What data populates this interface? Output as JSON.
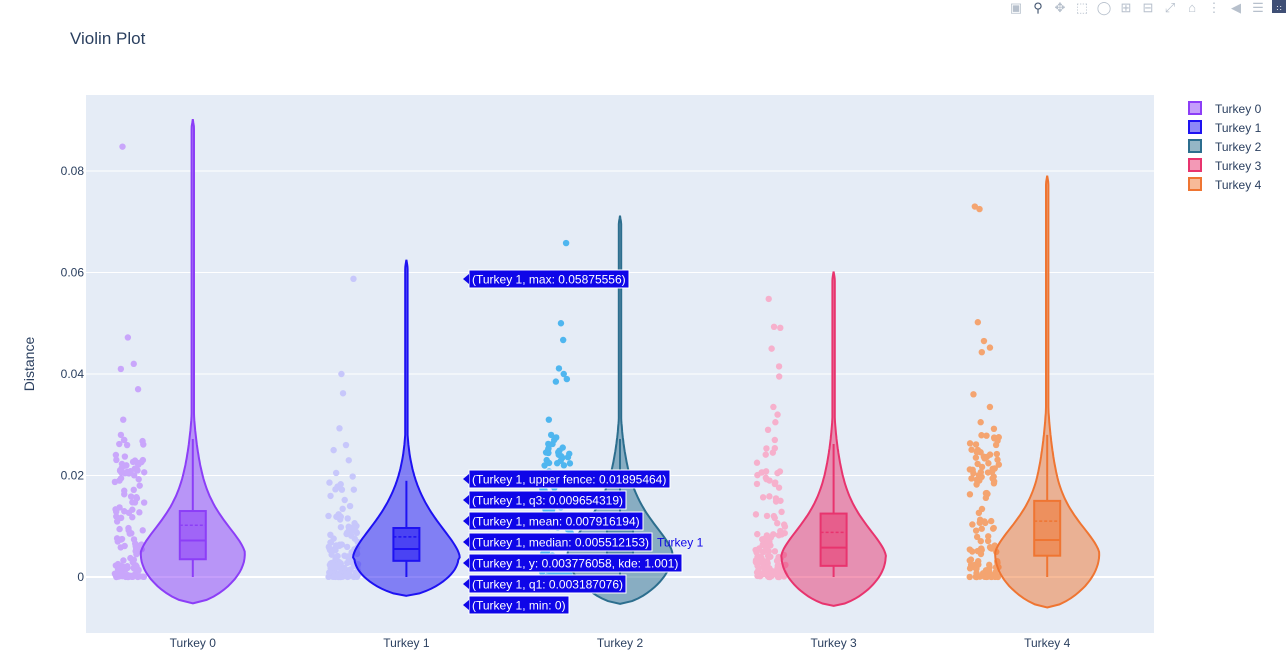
{
  "title": "Violin Plot",
  "toolbar": {
    "icons": [
      "camera-icon",
      "zoom-icon",
      "pan-icon",
      "box-select-icon",
      "lasso-icon",
      "zoom-in-icon",
      "zoom-out-icon",
      "autoscale-icon",
      "home-icon",
      "spike-icon",
      "hover-closest-icon",
      "hover-compare-icon",
      "plotly-logo-icon"
    ]
  },
  "chart_data": {
    "type": "violin",
    "title": "Violin Plot",
    "xlabel": "",
    "ylabel": "Distance",
    "ylim": [
      -0.011,
      0.095
    ],
    "yticks": [
      0,
      0.02,
      0.04,
      0.06,
      0.08
    ],
    "ytick_labels": [
      "0",
      "0.02",
      "0.04",
      "0.06",
      "0.08"
    ],
    "categories": [
      "Turkey 0",
      "Turkey 1",
      "Turkey 2",
      "Turkey 3",
      "Turkey 4"
    ],
    "grid": true,
    "legend_position": "top-right",
    "series": [
      {
        "name": "Turkey 0",
        "color": "#8c3ef7",
        "point_color": "#c9a6fb",
        "min": 0,
        "q1": 0.0035,
        "median": 0.0072,
        "mean": 0.0102,
        "q3": 0.013,
        "upper_fence": 0.0272,
        "max": 0.0848,
        "violin_top": 0.0902,
        "violin_bottom": -0.0052,
        "peak": 0.0045,
        "outliers": [
          0.0848,
          0.0472,
          0.042,
          0.041,
          0.037,
          0.031,
          0.028,
          0.027,
          0.026,
          0.0225,
          0.022,
          0.021,
          0.019,
          0.018,
          0.017
        ]
      },
      {
        "name": "Turkey 1",
        "color": "#1e12f2",
        "point_color": "#c7c7fb",
        "min": 0,
        "q1": 0.003187076,
        "median": 0.005512153,
        "mean": 0.007916194,
        "q3": 0.009654319,
        "upper_fence": 0.01895464,
        "max": 0.05875556,
        "violin_top": 0.0625,
        "violin_bottom": -0.0037,
        "peak": 0.0038,
        "outliers": [
          0.05875556,
          0.04,
          0.0362,
          0.0293,
          0.026,
          0.025,
          0.023,
          0.0205,
          0.0198
        ]
      },
      {
        "name": "Turkey 2",
        "color": "#2c6e8e",
        "point_color": "#4fb6ef",
        "min": 0,
        "q1": 0.003,
        "median": 0.0055,
        "mean": 0.008,
        "q3": 0.011,
        "upper_fence": 0.0272,
        "max": 0.0658,
        "violin_top": 0.0712,
        "violin_bottom": -0.0053,
        "peak": 0.0045,
        "outliers": [
          0.0658,
          0.05,
          0.0467,
          0.0411,
          0.04,
          0.039,
          0.0385,
          0.031,
          0.028,
          0.0275,
          0.027,
          0.0255,
          0.0238,
          0.022
        ]
      },
      {
        "name": "Turkey 3",
        "color": "#e8346e",
        "point_color": "#f6b0cc",
        "min": 0,
        "q1": 0.0022,
        "median": 0.0058,
        "mean": 0.0088,
        "q3": 0.0125,
        "upper_fence": 0.0262,
        "max": 0.0548,
        "violin_top": 0.0602,
        "violin_bottom": -0.0057,
        "peak": 0.004,
        "outliers": [
          0.0548,
          0.0493,
          0.0491,
          0.045,
          0.0415,
          0.0395,
          0.0335,
          0.032,
          0.0305,
          0.029,
          0.027
        ]
      },
      {
        "name": "Turkey 4",
        "color": "#ef7532",
        "point_color": "#f4a470",
        "min": 0,
        "q1": 0.0042,
        "median": 0.0073,
        "mean": 0.011,
        "q3": 0.015,
        "upper_fence": 0.028,
        "max": 0.073,
        "violin_top": 0.0791,
        "violin_bottom": -0.006,
        "peak": 0.0045,
        "outliers": [
          0.073,
          0.0725,
          0.0502,
          0.0465,
          0.0452,
          0.0443,
          0.036,
          0.0335,
          0.0305,
          0.0292
        ]
      }
    ],
    "hover": {
      "series": "Turkey 1",
      "label": "Turkey 1",
      "lines": [
        {
          "text": "(Turkey 1, max: 0.05875556)",
          "value": 0.05875556
        },
        {
          "text": "(Turkey 1, upper fence: 0.01895464)",
          "value": 0.01895464
        },
        {
          "text": "(Turkey 1, q3: 0.009654319)",
          "value": 0.009654319
        },
        {
          "text": "(Turkey 1, mean: 0.007916194)",
          "value": 0.007916194
        },
        {
          "text": "(Turkey 1, median: 0.005512153)",
          "value": 0.005512153
        },
        {
          "text": "(Turkey 1, y: 0.003776058, kde: 1.001)",
          "value": 0.003776058
        },
        {
          "text": "(Turkey 1, q1: 0.003187076)",
          "value": 0.003187076
        },
        {
          "text": "(Turkey 1, min: 0)",
          "value": 0
        }
      ]
    }
  }
}
